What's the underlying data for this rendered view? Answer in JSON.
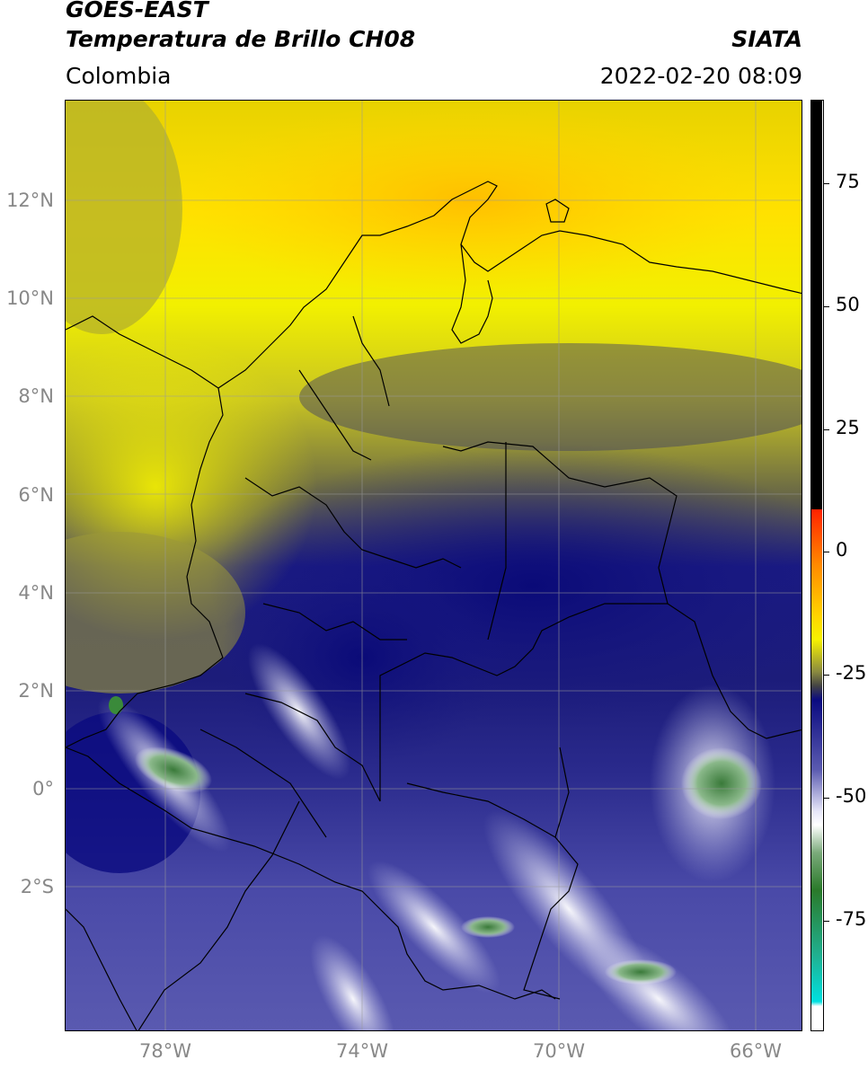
{
  "header": {
    "satellite": "GOES-EAST",
    "product": "Temperatura de Brillo CH08",
    "brand": "SIATA",
    "region": "Colombia",
    "timestamp": "2022-02-20 08:09"
  },
  "map": {
    "lon_range": [
      -80,
      -65
    ],
    "lat_range": [
      -5,
      14
    ],
    "lat_ticks": [
      "12°N",
      "10°N",
      "8°N",
      "6°N",
      "4°N",
      "2°N",
      "0°",
      "2°S"
    ],
    "lon_ticks": [
      "78°W",
      "74°W",
      "70°W",
      "66°W"
    ],
    "gridlines": true
  },
  "colorbar": {
    "ticks": [
      "75",
      "50",
      "25",
      "0",
      "-25",
      "-50",
      "-75"
    ],
    "range": [
      -95,
      95
    ],
    "colors": {
      "black": "#000000",
      "red": "#ff2200",
      "orange": "#ff9900",
      "yellow": "#ffff00",
      "olive": "#666633",
      "navy": "#0a0a80",
      "white": "#ffffff",
      "green": "#2a7a2a",
      "cyan": "#00e0e0"
    }
  }
}
